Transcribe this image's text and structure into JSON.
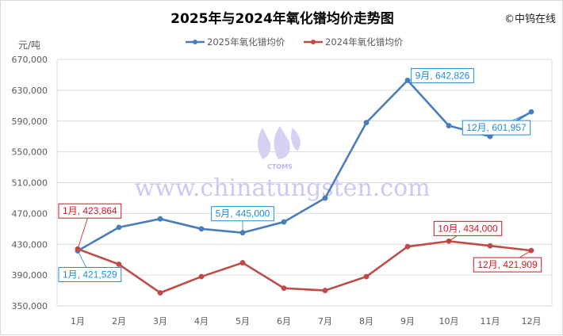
{
  "chart_data": {
    "type": "line",
    "title": "2025年与2024年氧化镨均价走势图",
    "credit": "©中钨在线",
    "ylabel": "元/吨",
    "xlabel": "",
    "watermark": "www.chinatungsten.com",
    "watermark_logo": "CTOMS",
    "categories": [
      "1月",
      "2月",
      "3月",
      "4月",
      "5月",
      "6月",
      "7月",
      "8月",
      "9月",
      "10月",
      "11月",
      "12月"
    ],
    "ylim": [
      350000,
      670000
    ],
    "yticks": [
      350000,
      390000,
      430000,
      470000,
      510000,
      550000,
      590000,
      630000,
      670000
    ],
    "ytick_labels": [
      "350,000",
      "390,000",
      "430,000",
      "470,000",
      "510,000",
      "550,000",
      "590,000",
      "630,000",
      "670,000"
    ],
    "grid": true,
    "legend_position": "top",
    "series": [
      {
        "name": "2025年氧化镨均价",
        "color": "#4a7ebb",
        "values": [
          421529,
          452000,
          463000,
          450000,
          445000,
          459000,
          490000,
          588000,
          642826,
          584000,
          570000,
          601957
        ],
        "data_labels": [
          {
            "index": 0,
            "text": "1月, 421,529"
          },
          {
            "index": 4,
            "text": "5月, 445,000"
          },
          {
            "index": 8,
            "text": "9月, 642,826"
          },
          {
            "index": 11,
            "text": "12月, 601,957"
          }
        ]
      },
      {
        "name": "2024年氧化镨均价",
        "color": "#be4b48",
        "values": [
          423864,
          404000,
          367000,
          388000,
          406000,
          373000,
          370000,
          388000,
          427000,
          434000,
          428000,
          421909
        ],
        "data_labels": [
          {
            "index": 0,
            "text": "1月, 423,864"
          },
          {
            "index": 9,
            "text": "10月, 434,000"
          },
          {
            "index": 11,
            "text": "12月, 421,909"
          }
        ]
      }
    ],
    "label_colors": {
      "2025": "#1f8dd6",
      "2024": "#d0191f"
    }
  }
}
